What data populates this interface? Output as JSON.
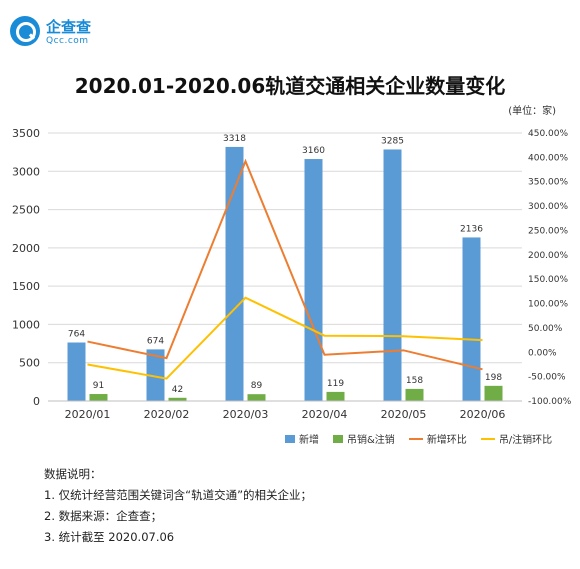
{
  "logo": {
    "name": "企查查",
    "domain": "Qcc.com"
  },
  "header": {
    "title": "2020.01-2020.06轨道交通相关企业数量变化",
    "unit": "(单位：家)"
  },
  "colors": {
    "bar_new": "#5b9bd5",
    "bar_cancel": "#70ad47",
    "line_new": "#ed7d31",
    "line_cancel": "#ffc000",
    "grid": "#d9d9d9"
  },
  "chart_data": {
    "type": "bar",
    "categories": [
      "2020/01",
      "2020/02",
      "2020/03",
      "2020/04",
      "2020/05",
      "2020/06"
    ],
    "series": [
      {
        "name": "新增",
        "type": "bar",
        "axis": "left",
        "values": [
          764,
          674,
          3318,
          3160,
          3285,
          2136
        ]
      },
      {
        "name": "吊销&注销",
        "type": "bar",
        "axis": "left",
        "values": [
          91,
          42,
          89,
          119,
          158,
          198
        ]
      },
      {
        "name": "新增环比",
        "type": "line",
        "axis": "right",
        "values": [
          22,
          -12,
          392,
          -5,
          4,
          -35
        ]
      },
      {
        "name": "吊/注销环比",
        "type": "line",
        "axis": "right",
        "values": [
          -25,
          -54,
          112,
          34,
          33,
          25
        ]
      }
    ],
    "left_axis": {
      "min": 0,
      "max": 3500,
      "ticks": [
        "0",
        "500",
        "1000",
        "1500",
        "2000",
        "2500",
        "3000",
        "3500"
      ]
    },
    "right_axis": {
      "min": -100,
      "max": 450,
      "ticks": [
        "-100.00%",
        "-50.00%",
        "0.00%",
        "50.00%",
        "100.00%",
        "150.00%",
        "200.00%",
        "250.00%",
        "300.00%",
        "350.00%",
        "400.00%",
        "450.00%"
      ]
    },
    "bar_labels": [
      [
        "764",
        "674",
        "3318",
        "3160",
        "3285",
        "2136"
      ],
      [
        "91",
        "42",
        "89",
        "119",
        "158",
        "198"
      ]
    ],
    "grid": true,
    "legend_position": "bottom-right"
  },
  "notes": {
    "heading": "数据说明：",
    "items": [
      "1. 仅统计经营范围关键词含“轨道交通”的相关企业；",
      "2. 数据来源：企查查；",
      "3. 统计截至 2020.07.06"
    ]
  }
}
